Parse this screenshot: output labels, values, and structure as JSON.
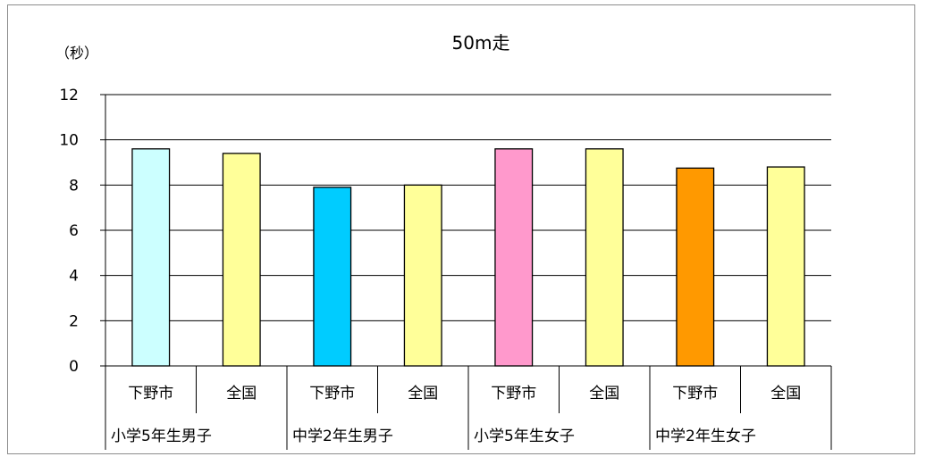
{
  "chart_data": {
    "type": "bar",
    "title": "50m走",
    "ylabel": "（秒）",
    "xlabel": "",
    "ylim": [
      0,
      12
    ],
    "yticks": [
      0,
      2,
      4,
      6,
      8,
      10,
      12
    ],
    "grid": true,
    "groups": [
      {
        "label": "小学5年生男子",
        "bars": [
          {
            "label": "下野市",
            "value": 9.6,
            "color": "#ccffff"
          },
          {
            "label": "全国",
            "value": 9.4,
            "color": "#ffff99"
          }
        ]
      },
      {
        "label": "中学2年生男子",
        "bars": [
          {
            "label": "下野市",
            "value": 7.9,
            "color": "#00ccff"
          },
          {
            "label": "全国",
            "value": 8.0,
            "color": "#ffff99"
          }
        ]
      },
      {
        "label": "小学5年生女子",
        "bars": [
          {
            "label": "下野市",
            "value": 9.6,
            "color": "#ff99cc"
          },
          {
            "label": "全国",
            "value": 9.6,
            "color": "#ffff99"
          }
        ]
      },
      {
        "label": "中学2年生女子",
        "bars": [
          {
            "label": "下野市",
            "value": 8.75,
            "color": "#ff9900"
          },
          {
            "label": "全国",
            "value": 8.8,
            "color": "#ffff99"
          }
        ]
      }
    ]
  }
}
